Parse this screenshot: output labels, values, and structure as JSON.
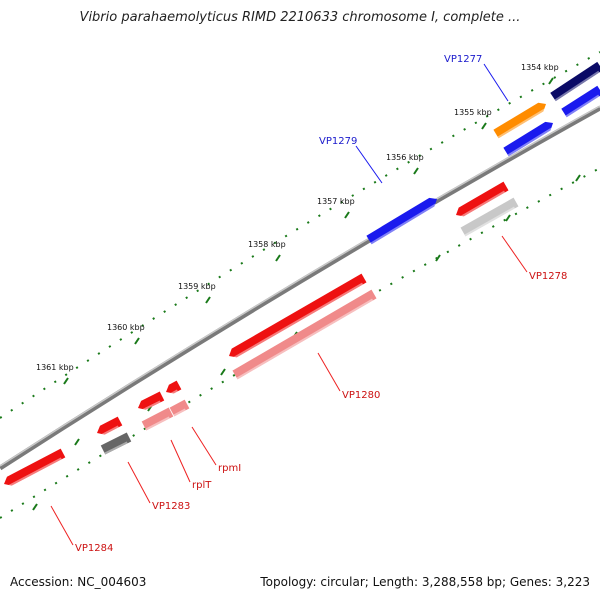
{
  "title": "Vibrio parahaemolyticus RIMD 2210633 chromosome I, complete ...",
  "footer": {
    "accession": "Accession: NC_004603",
    "summary": "Topology: circular; Length: 3,288,558 bp; Genes: 3,223"
  },
  "colors": {
    "backbone": "#888888",
    "tick": "#1a7a1a",
    "label_plus": "#1a1acc",
    "label_minus": "#cc1111",
    "leader_plus": "#1a1aee",
    "leader_minus": "#ee2222"
  },
  "ticks": [
    {
      "label": "1354 kbp"
    },
    {
      "label": "1355 kbp"
    },
    {
      "label": "1356 kbp"
    },
    {
      "label": "1357 kbp"
    },
    {
      "label": "1358 kbp"
    },
    {
      "label": "1359 kbp"
    },
    {
      "label": "1360 kbp"
    },
    {
      "label": "1361 kbp"
    }
  ],
  "labels": [
    {
      "text": "VP1277",
      "strand": "plus"
    },
    {
      "text": "VP1279",
      "strand": "plus"
    },
    {
      "text": "VP1278",
      "strand": "minus"
    },
    {
      "text": "VP1280",
      "strand": "minus"
    },
    {
      "text": "rpmI",
      "strand": "minus"
    },
    {
      "text": "rplT",
      "strand": "minus"
    },
    {
      "text": "VP1283",
      "strand": "minus"
    },
    {
      "text": "VP1284",
      "strand": "minus"
    }
  ]
}
